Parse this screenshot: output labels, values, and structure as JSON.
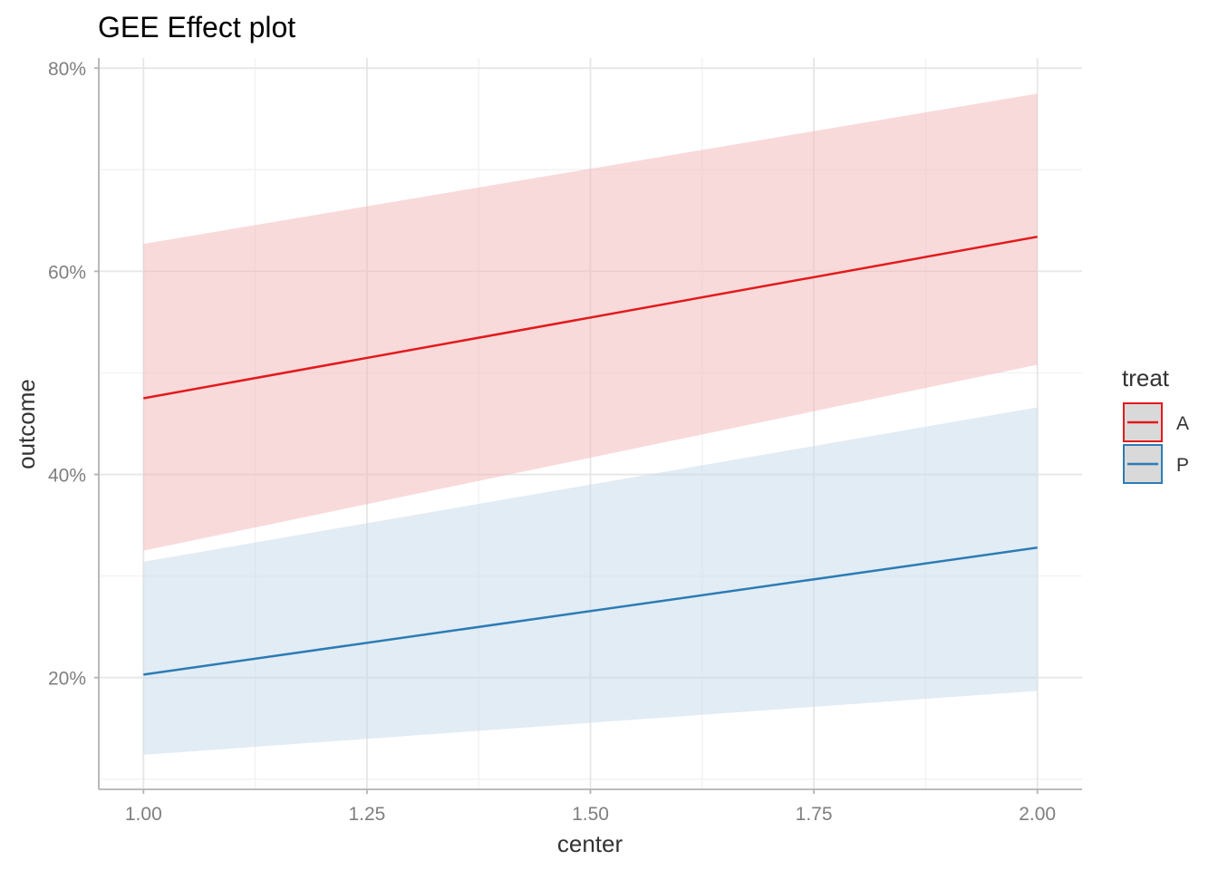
{
  "chart_data": {
    "type": "line",
    "title": "GEE Effect plot",
    "xlabel": "center",
    "ylabel": "outcome",
    "xlim": [
      0.95,
      2.05
    ],
    "ylim": [
      0.09,
      0.81
    ],
    "x_ticks": [
      1.0,
      1.25,
      1.5,
      1.75,
      2.0
    ],
    "x_tick_labels": [
      "1.00",
      "1.25",
      "1.50",
      "1.75",
      "2.00"
    ],
    "y_ticks": [
      0.2,
      0.4,
      0.6,
      0.8
    ],
    "y_tick_labels": [
      "20%",
      "40%",
      "60%",
      "80%"
    ],
    "x_minor_ticks": [
      1.125,
      1.375,
      1.625,
      1.875
    ],
    "y_minor_ticks": [
      0.1,
      0.3,
      0.5,
      0.7
    ],
    "grid": true,
    "legend": {
      "title": "treat",
      "placement": "right"
    },
    "series": [
      {
        "name": "A",
        "color": "#e31a1c",
        "ribbon_color": "#f4b6b8",
        "x": [
          1.0,
          2.0
        ],
        "y": [
          0.475,
          0.634
        ],
        "lower": [
          0.325,
          0.508
        ],
        "upper": [
          0.627,
          0.775
        ]
      },
      {
        "name": "P",
        "color": "#2c7bb6",
        "ribbon_color": "#c6d9ea",
        "x": [
          1.0,
          2.0
        ],
        "y": [
          0.203,
          0.328
        ],
        "lower": [
          0.124,
          0.187
        ],
        "upper": [
          0.314,
          0.466
        ]
      }
    ]
  }
}
